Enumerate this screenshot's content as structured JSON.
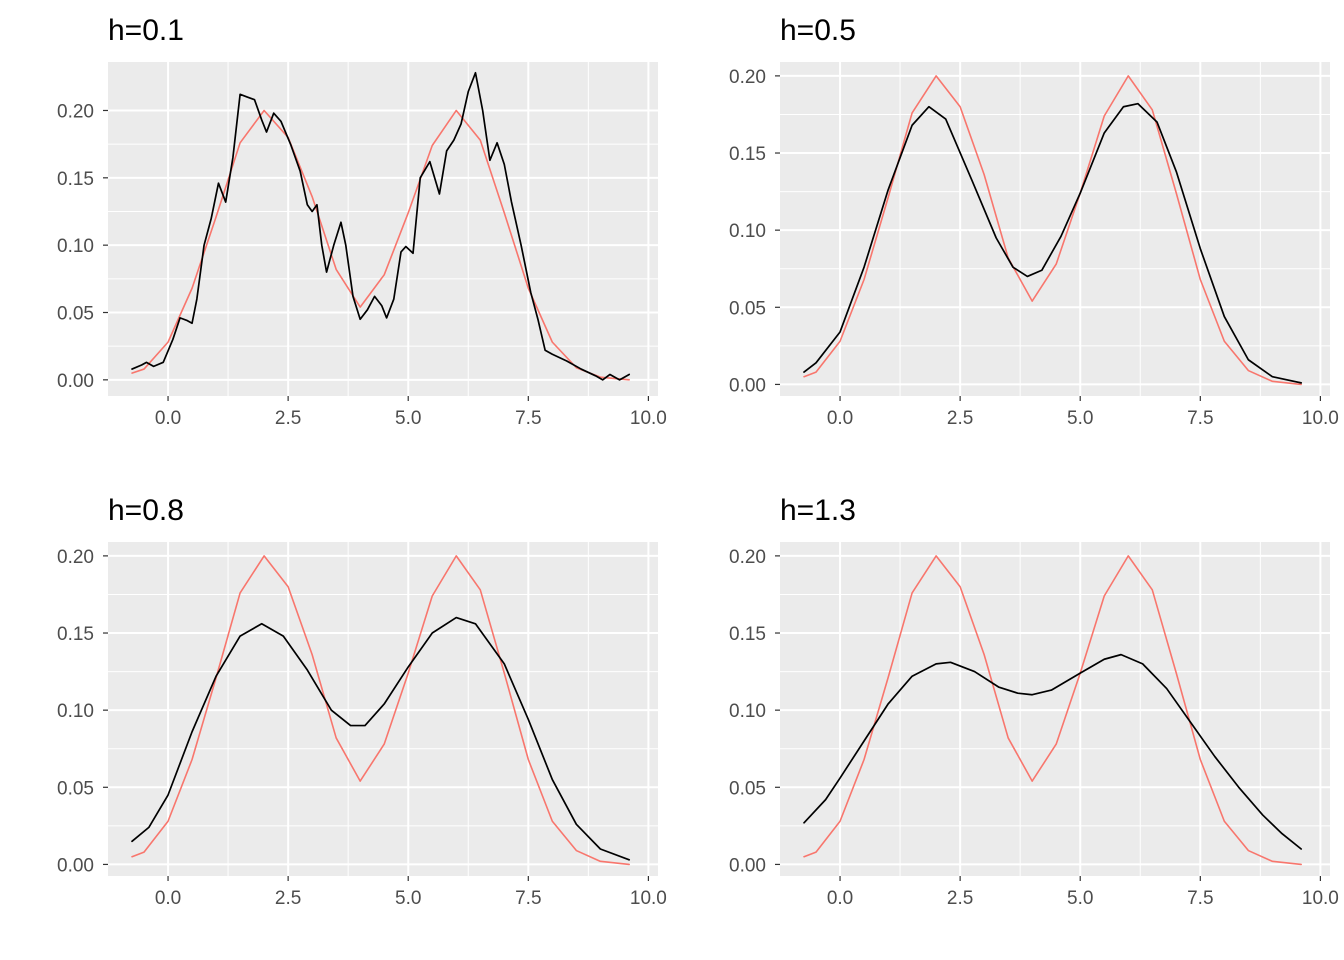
{
  "colors": {
    "panel_background": "#ebebeb",
    "grid": "#ffffff",
    "tick_text": "#4d4d4d",
    "tick_mark": "#333333",
    "true_density": "#f8766d",
    "kde": "#000000"
  },
  "chart_data": [
    {
      "type": "line",
      "title": "h=0.1",
      "xlabel": "",
      "ylabel": "",
      "xlim": [
        -1.25,
        10.2
      ],
      "ylim": [
        -0.012,
        0.236
      ],
      "x_ticks": [
        0.0,
        2.5,
        5.0,
        7.5,
        10.0
      ],
      "x_tick_labels": [
        "0.0",
        "2.5",
        "5.0",
        "7.5",
        "10.0"
      ],
      "y_ticks": [
        0.0,
        0.05,
        0.1,
        0.15,
        0.2
      ],
      "y_tick_labels": [
        "0.00",
        "0.05",
        "0.10",
        "0.15",
        "0.20"
      ],
      "grid": true,
      "legend": "none",
      "series": [
        {
          "color": "#f8766d",
          "points": [
            [
              -0.75,
              0.005
            ],
            [
              -0.5,
              0.008
            ],
            [
              0.0,
              0.028
            ],
            [
              0.5,
              0.068
            ],
            [
              1.0,
              0.121
            ],
            [
              1.5,
              0.176
            ],
            [
              2.0,
              0.2
            ],
            [
              2.5,
              0.18
            ],
            [
              3.0,
              0.136
            ],
            [
              3.5,
              0.082
            ],
            [
              4.0,
              0.054
            ],
            [
              4.5,
              0.078
            ],
            [
              5.0,
              0.124
            ],
            [
              5.5,
              0.174
            ],
            [
              6.0,
              0.2
            ],
            [
              6.5,
              0.178
            ],
            [
              7.0,
              0.124
            ],
            [
              7.5,
              0.068
            ],
            [
              8.0,
              0.028
            ],
            [
              8.5,
              0.009
            ],
            [
              9.0,
              0.002
            ],
            [
              9.6,
              0.0
            ]
          ]
        },
        {
          "color": "#000000",
          "points": [
            [
              -0.75,
              0.008
            ],
            [
              -0.55,
              0.011
            ],
            [
              -0.45,
              0.013
            ],
            [
              -0.3,
              0.01
            ],
            [
              -0.1,
              0.013
            ],
            [
              0.1,
              0.03
            ],
            [
              0.25,
              0.046
            ],
            [
              0.4,
              0.044
            ],
            [
              0.5,
              0.042
            ],
            [
              0.6,
              0.06
            ],
            [
              0.75,
              0.1
            ],
            [
              0.9,
              0.12
            ],
            [
              1.05,
              0.146
            ],
            [
              1.2,
              0.132
            ],
            [
              1.35,
              0.165
            ],
            [
              1.5,
              0.212
            ],
            [
              1.65,
              0.21
            ],
            [
              1.8,
              0.208
            ],
            [
              1.95,
              0.193
            ],
            [
              2.05,
              0.184
            ],
            [
              2.2,
              0.198
            ],
            [
              2.35,
              0.192
            ],
            [
              2.55,
              0.175
            ],
            [
              2.75,
              0.155
            ],
            [
              2.9,
              0.13
            ],
            [
              3.0,
              0.125
            ],
            [
              3.1,
              0.13
            ],
            [
              3.2,
              0.1
            ],
            [
              3.3,
              0.08
            ],
            [
              3.45,
              0.1
            ],
            [
              3.6,
              0.117
            ],
            [
              3.7,
              0.1
            ],
            [
              3.85,
              0.062
            ],
            [
              4.0,
              0.045
            ],
            [
              4.15,
              0.052
            ],
            [
              4.3,
              0.062
            ],
            [
              4.45,
              0.055
            ],
            [
              4.55,
              0.046
            ],
            [
              4.7,
              0.06
            ],
            [
              4.85,
              0.095
            ],
            [
              4.95,
              0.099
            ],
            [
              5.1,
              0.094
            ],
            [
              5.25,
              0.15
            ],
            [
              5.45,
              0.162
            ],
            [
              5.65,
              0.138
            ],
            [
              5.8,
              0.17
            ],
            [
              5.95,
              0.178
            ],
            [
              6.1,
              0.19
            ],
            [
              6.25,
              0.214
            ],
            [
              6.4,
              0.228
            ],
            [
              6.55,
              0.2
            ],
            [
              6.7,
              0.163
            ],
            [
              6.85,
              0.176
            ],
            [
              7.0,
              0.16
            ],
            [
              7.15,
              0.132
            ],
            [
              7.35,
              0.1
            ],
            [
              7.55,
              0.065
            ],
            [
              7.7,
              0.045
            ],
            [
              7.85,
              0.022
            ],
            [
              8.0,
              0.019
            ],
            [
              8.3,
              0.014
            ],
            [
              8.6,
              0.008
            ],
            [
              8.9,
              0.003
            ],
            [
              9.05,
              0.0
            ],
            [
              9.2,
              0.004
            ],
            [
              9.4,
              0.0
            ],
            [
              9.6,
              0.004
            ]
          ]
        }
      ]
    },
    {
      "type": "line",
      "title": "h=0.5",
      "xlabel": "",
      "ylabel": "",
      "xlim": [
        -1.25,
        10.2
      ],
      "ylim": [
        -0.0075,
        0.209
      ],
      "x_ticks": [
        0.0,
        2.5,
        5.0,
        7.5,
        10.0
      ],
      "x_tick_labels": [
        "0.0",
        "2.5",
        "5.0",
        "7.5",
        "10.0"
      ],
      "y_ticks": [
        0.0,
        0.05,
        0.1,
        0.15,
        0.2
      ],
      "y_tick_labels": [
        "0.00",
        "0.05",
        "0.10",
        "0.15",
        "0.20"
      ],
      "grid": true,
      "legend": "none",
      "series": [
        {
          "color": "#f8766d",
          "points": [
            [
              -0.75,
              0.005
            ],
            [
              -0.5,
              0.008
            ],
            [
              0.0,
              0.028
            ],
            [
              0.5,
              0.068
            ],
            [
              1.0,
              0.121
            ],
            [
              1.5,
              0.176
            ],
            [
              2.0,
              0.2
            ],
            [
              2.5,
              0.18
            ],
            [
              3.0,
              0.136
            ],
            [
              3.5,
              0.082
            ],
            [
              4.0,
              0.054
            ],
            [
              4.5,
              0.078
            ],
            [
              5.0,
              0.124
            ],
            [
              5.5,
              0.174
            ],
            [
              6.0,
              0.2
            ],
            [
              6.5,
              0.178
            ],
            [
              7.0,
              0.124
            ],
            [
              7.5,
              0.068
            ],
            [
              8.0,
              0.028
            ],
            [
              8.5,
              0.009
            ],
            [
              9.0,
              0.002
            ],
            [
              9.6,
              0.0
            ]
          ]
        },
        {
          "color": "#000000",
          "points": [
            [
              -0.75,
              0.008
            ],
            [
              -0.5,
              0.014
            ],
            [
              0.0,
              0.034
            ],
            [
              0.5,
              0.076
            ],
            [
              1.0,
              0.126
            ],
            [
              1.5,
              0.168
            ],
            [
              1.85,
              0.18
            ],
            [
              2.2,
              0.172
            ],
            [
              2.75,
              0.132
            ],
            [
              3.25,
              0.095
            ],
            [
              3.6,
              0.076
            ],
            [
              3.9,
              0.07
            ],
            [
              4.2,
              0.074
            ],
            [
              4.6,
              0.096
            ],
            [
              5.0,
              0.124
            ],
            [
              5.5,
              0.163
            ],
            [
              5.9,
              0.18
            ],
            [
              6.2,
              0.182
            ],
            [
              6.6,
              0.17
            ],
            [
              7.0,
              0.138
            ],
            [
              7.5,
              0.088
            ],
            [
              8.0,
              0.044
            ],
            [
              8.5,
              0.016
            ],
            [
              9.0,
              0.005
            ],
            [
              9.6,
              0.001
            ]
          ]
        }
      ]
    },
    {
      "type": "line",
      "title": "h=0.8",
      "xlabel": "",
      "ylabel": "",
      "xlim": [
        -1.25,
        10.2
      ],
      "ylim": [
        -0.0075,
        0.209
      ],
      "x_ticks": [
        0.0,
        2.5,
        5.0,
        7.5,
        10.0
      ],
      "x_tick_labels": [
        "0.0",
        "2.5",
        "5.0",
        "7.5",
        "10.0"
      ],
      "y_ticks": [
        0.0,
        0.05,
        0.1,
        0.15,
        0.2
      ],
      "y_tick_labels": [
        "0.00",
        "0.05",
        "0.10",
        "0.15",
        "0.20"
      ],
      "grid": true,
      "legend": "none",
      "series": [
        {
          "color": "#f8766d",
          "points": [
            [
              -0.75,
              0.005
            ],
            [
              -0.5,
              0.008
            ],
            [
              0.0,
              0.028
            ],
            [
              0.5,
              0.068
            ],
            [
              1.0,
              0.121
            ],
            [
              1.5,
              0.176
            ],
            [
              2.0,
              0.2
            ],
            [
              2.5,
              0.18
            ],
            [
              3.0,
              0.136
            ],
            [
              3.5,
              0.082
            ],
            [
              4.0,
              0.054
            ],
            [
              4.5,
              0.078
            ],
            [
              5.0,
              0.124
            ],
            [
              5.5,
              0.174
            ],
            [
              6.0,
              0.2
            ],
            [
              6.5,
              0.178
            ],
            [
              7.0,
              0.124
            ],
            [
              7.5,
              0.068
            ],
            [
              8.0,
              0.028
            ],
            [
              8.5,
              0.009
            ],
            [
              9.0,
              0.002
            ],
            [
              9.6,
              0.0
            ]
          ]
        },
        {
          "color": "#000000",
          "points": [
            [
              -0.75,
              0.015
            ],
            [
              -0.4,
              0.024
            ],
            [
              0.0,
              0.045
            ],
            [
              0.5,
              0.086
            ],
            [
              1.0,
              0.122
            ],
            [
              1.5,
              0.148
            ],
            [
              1.95,
              0.156
            ],
            [
              2.4,
              0.148
            ],
            [
              2.9,
              0.126
            ],
            [
              3.4,
              0.1
            ],
            [
              3.8,
              0.09
            ],
            [
              4.1,
              0.09
            ],
            [
              4.5,
              0.104
            ],
            [
              5.0,
              0.128
            ],
            [
              5.5,
              0.15
            ],
            [
              6.0,
              0.16
            ],
            [
              6.4,
              0.156
            ],
            [
              7.0,
              0.13
            ],
            [
              7.5,
              0.094
            ],
            [
              8.0,
              0.055
            ],
            [
              8.5,
              0.026
            ],
            [
              9.0,
              0.01
            ],
            [
              9.6,
              0.003
            ]
          ]
        }
      ]
    },
    {
      "type": "line",
      "title": "h=1.3",
      "xlabel": "",
      "ylabel": "",
      "xlim": [
        -1.25,
        10.2
      ],
      "ylim": [
        -0.0075,
        0.209
      ],
      "x_ticks": [
        0.0,
        2.5,
        5.0,
        7.5,
        10.0
      ],
      "x_tick_labels": [
        "0.0",
        "2.5",
        "5.0",
        "7.5",
        "10.0"
      ],
      "y_ticks": [
        0.0,
        0.05,
        0.1,
        0.15,
        0.2
      ],
      "y_tick_labels": [
        "0.00",
        "0.05",
        "0.10",
        "0.15",
        "0.20"
      ],
      "grid": true,
      "legend": "none",
      "series": [
        {
          "color": "#f8766d",
          "points": [
            [
              -0.75,
              0.005
            ],
            [
              -0.5,
              0.008
            ],
            [
              0.0,
              0.028
            ],
            [
              0.5,
              0.068
            ],
            [
              1.0,
              0.121
            ],
            [
              1.5,
              0.176
            ],
            [
              2.0,
              0.2
            ],
            [
              2.5,
              0.18
            ],
            [
              3.0,
              0.136
            ],
            [
              3.5,
              0.082
            ],
            [
              4.0,
              0.054
            ],
            [
              4.5,
              0.078
            ],
            [
              5.0,
              0.124
            ],
            [
              5.5,
              0.174
            ],
            [
              6.0,
              0.2
            ],
            [
              6.5,
              0.178
            ],
            [
              7.0,
              0.124
            ],
            [
              7.5,
              0.068
            ],
            [
              8.0,
              0.028
            ],
            [
              8.5,
              0.009
            ],
            [
              9.0,
              0.002
            ],
            [
              9.6,
              0.0
            ]
          ]
        },
        {
          "color": "#000000",
          "points": [
            [
              -0.75,
              0.027
            ],
            [
              -0.3,
              0.042
            ],
            [
              0.0,
              0.056
            ],
            [
              0.5,
              0.08
            ],
            [
              1.0,
              0.104
            ],
            [
              1.5,
              0.122
            ],
            [
              2.0,
              0.13
            ],
            [
              2.3,
              0.131
            ],
            [
              2.8,
              0.125
            ],
            [
              3.3,
              0.115
            ],
            [
              3.7,
              0.111
            ],
            [
              4.0,
              0.11
            ],
            [
              4.4,
              0.113
            ],
            [
              5.0,
              0.124
            ],
            [
              5.5,
              0.133
            ],
            [
              5.85,
              0.136
            ],
            [
              6.3,
              0.13
            ],
            [
              6.8,
              0.114
            ],
            [
              7.3,
              0.092
            ],
            [
              7.8,
              0.07
            ],
            [
              8.3,
              0.05
            ],
            [
              8.8,
              0.032
            ],
            [
              9.2,
              0.02
            ],
            [
              9.6,
              0.01
            ]
          ]
        }
      ]
    }
  ]
}
